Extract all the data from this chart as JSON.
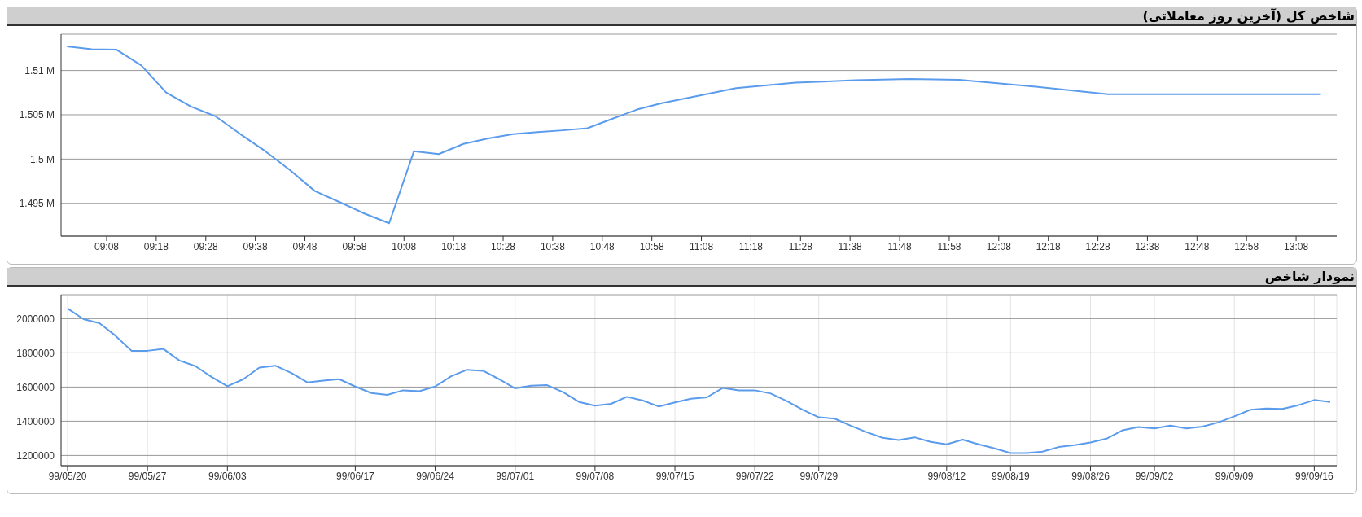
{
  "chart_data": [
    {
      "type": "line",
      "title": "شاخص کل (آخرین روز معاملاتی)",
      "grid": "y",
      "color": "#5b9bec",
      "x": [
        9.0,
        9.0833,
        9.1667,
        9.25,
        9.3333,
        9.4167,
        9.5,
        9.5833,
        9.6667,
        9.75,
        9.8333,
        9.9167,
        10.0,
        10.0833,
        10.1667,
        10.25,
        10.3333,
        10.4167,
        10.5,
        10.5833,
        10.6667,
        10.75,
        10.8333,
        10.9167,
        11.0,
        11.25,
        11.45,
        11.65,
        11.8333,
        12.0,
        12.25,
        12.5,
        13.2167
      ],
      "values": [
        1512730,
        1512400,
        1512350,
        1510570,
        1507510,
        1505930,
        1504820,
        1502810,
        1500890,
        1498740,
        1496390,
        1495140,
        1493850,
        1492750,
        1500890,
        1500560,
        1501710,
        1502330,
        1502810,
        1503050,
        1503240,
        1503480,
        1504540,
        1505590,
        1506300,
        1508000,
        1508620,
        1508900,
        1509050,
        1508950,
        1508190,
        1507330,
        1507330
      ],
      "xlim": [
        8.98,
        13.27
      ],
      "xticks": [
        {
          "value": 9.1333,
          "label": "09:08"
        },
        {
          "value": 9.3,
          "label": "09:18"
        },
        {
          "value": 9.4667,
          "label": "09:28"
        },
        {
          "value": 9.6333,
          "label": "09:38"
        },
        {
          "value": 9.8,
          "label": "09:48"
        },
        {
          "value": 9.9667,
          "label": "09:58"
        },
        {
          "value": 10.1333,
          "label": "10:08"
        },
        {
          "value": 10.3,
          "label": "10:18"
        },
        {
          "value": 10.4667,
          "label": "10:28"
        },
        {
          "value": 10.6333,
          "label": "10:38"
        },
        {
          "value": 10.8,
          "label": "10:48"
        },
        {
          "value": 10.9667,
          "label": "10:58"
        },
        {
          "value": 11.1333,
          "label": "11:08"
        },
        {
          "value": 11.3,
          "label": "11:18"
        },
        {
          "value": 11.4667,
          "label": "11:28"
        },
        {
          "value": 11.6333,
          "label": "11:38"
        },
        {
          "value": 11.8,
          "label": "11:48"
        },
        {
          "value": 11.9667,
          "label": "11:58"
        },
        {
          "value": 12.1333,
          "label": "12:08"
        },
        {
          "value": 12.3,
          "label": "12:18"
        },
        {
          "value": 12.4667,
          "label": "12:28"
        },
        {
          "value": 12.6333,
          "label": "12:38"
        },
        {
          "value": 12.8,
          "label": "12:48"
        },
        {
          "value": 12.9667,
          "label": "12:58"
        },
        {
          "value": 13.1333,
          "label": "13:08"
        }
      ],
      "ylim": [
        1491300,
        1514100
      ],
      "yticks": [
        {
          "value": 1495000,
          "label": "1.495 M"
        },
        {
          "value": 1500000,
          "label": "1.5 M"
        },
        {
          "value": 1505000,
          "label": "1.505 M"
        },
        {
          "value": 1510000,
          "label": "1.51 M"
        }
      ]
    },
    {
      "type": "line",
      "title": "نمودار شاخص",
      "grid": true,
      "color": "#5b9bec",
      "categories": [
        "99/05/20",
        null,
        null,
        null,
        null,
        "99/05/27",
        null,
        null,
        null,
        null,
        "99/06/03",
        null,
        null,
        null,
        null,
        null,
        null,
        null,
        "99/06/17",
        null,
        null,
        null,
        null,
        "99/06/24",
        null,
        null,
        null,
        null,
        "99/07/01",
        null,
        null,
        null,
        null,
        "99/07/08",
        null,
        null,
        null,
        null,
        "99/07/15",
        null,
        null,
        null,
        null,
        "99/07/22",
        null,
        null,
        null,
        "99/07/29",
        null,
        null,
        null,
        null,
        null,
        null,
        null,
        "99/08/12",
        null,
        null,
        null,
        "99/08/19",
        null,
        null,
        null,
        null,
        "99/08/26",
        null,
        null,
        null,
        "99/09/02",
        null,
        null,
        null,
        null,
        "99/09/09",
        null,
        null,
        null,
        null,
        "99/09/16",
        null
      ],
      "values": [
        2060000,
        1997000,
        1973000,
        1900000,
        1812000,
        1812000,
        1823000,
        1755000,
        1722000,
        1660000,
        1605000,
        1646000,
        1714000,
        1725000,
        1682000,
        1627000,
        1638000,
        1646000,
        1603000,
        1565000,
        1554000,
        1581000,
        1576000,
        1603000,
        1663000,
        1701000,
        1695000,
        1646000,
        1592000,
        1608000,
        1611000,
        1570000,
        1513000,
        1491000,
        1502000,
        1543000,
        1521000,
        1486000,
        1510000,
        1532000,
        1540000,
        1595000,
        1581000,
        1581000,
        1562000,
        1518000,
        1467000,
        1423000,
        1415000,
        1374000,
        1336000,
        1303000,
        1290000,
        1306000,
        1279000,
        1265000,
        1292000,
        1265000,
        1241000,
        1214000,
        1214000,
        1222000,
        1249000,
        1260000,
        1276000,
        1298000,
        1347000,
        1366000,
        1358000,
        1374000,
        1358000,
        1369000,
        1393000,
        1429000,
        1467000,
        1475000,
        1472000,
        1494000,
        1524000,
        1513000
      ],
      "ylim": [
        1140000,
        2140000
      ],
      "yticks": [
        1200000,
        1400000,
        1600000,
        1800000,
        2000000
      ]
    }
  ]
}
